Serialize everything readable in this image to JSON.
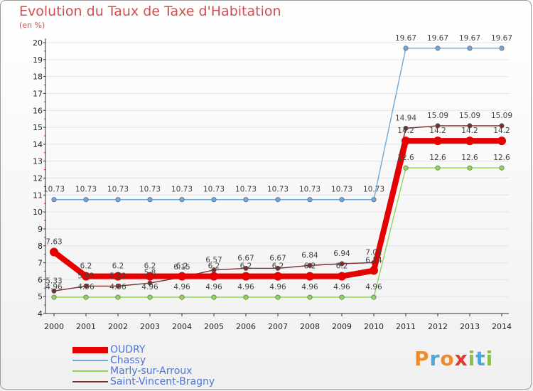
{
  "header": {
    "title": "Evolution du Taux de Taxe d'Habitation",
    "unit": "(en %)"
  },
  "brand": {
    "letters": [
      "P",
      "r",
      "o",
      "x",
      "i",
      "t",
      "i"
    ],
    "colors": [
      "#f08a2c",
      "#4da5d8",
      "#f08a2c",
      "#e23c2d",
      "#86c24a",
      "#4da5d8",
      "#86c24a"
    ]
  },
  "chart_data": {
    "type": "line",
    "title": "Evolution du Taux de Taxe d'Habitation",
    "ylabel": "(en %)",
    "xlabel": "",
    "x": [
      "2000",
      "2001",
      "2002",
      "2003",
      "2004",
      "2005",
      "2006",
      "2007",
      "2008",
      "2009",
      "2010",
      "2011",
      "2012",
      "2013",
      "2014"
    ],
    "ylim": [
      4,
      20
    ],
    "yticks": [
      "4",
      "5",
      "6",
      "7",
      "8",
      "9",
      "10",
      "11",
      "12",
      "13",
      "14",
      "15",
      "16",
      "17",
      "18",
      "19",
      "20"
    ],
    "legend_position": "bottom-left",
    "series": [
      {
        "name": "OUDRY",
        "color": "#e60000",
        "values": [
          7.63,
          6.2,
          6.2,
          6.2,
          6.2,
          6.2,
          6.2,
          6.2,
          6.2,
          6.2,
          6.54,
          14.2,
          14.2,
          14.2,
          14.2
        ],
        "labels": [
          "7.63",
          "6.2",
          "6.2",
          "6.2",
          "6.2",
          "6.2",
          "6.2",
          "6.2",
          "6.2",
          "6.2",
          "6.54",
          "14.2",
          "14.2",
          "14.2",
          "14.2"
        ]
      },
      {
        "name": "Chassy",
        "color": "#6fa8dc",
        "values": [
          10.73,
          10.73,
          10.73,
          10.73,
          10.73,
          10.73,
          10.73,
          10.73,
          10.73,
          10.73,
          10.73,
          19.67,
          19.67,
          19.67,
          19.67
        ],
        "labels": [
          "10.73",
          "10.73",
          "10.73",
          "10.73",
          "10.73",
          "10.73",
          "10.73",
          "10.73",
          "10.73",
          "10.73",
          "10.73",
          "19.67",
          "19.67",
          "19.67",
          "19.67"
        ]
      },
      {
        "name": "Marly-sur-Arroux",
        "color": "#93d35a",
        "values": [
          4.96,
          4.96,
          4.96,
          4.96,
          4.96,
          4.96,
          4.96,
          4.96,
          4.96,
          4.96,
          4.96,
          12.6,
          12.6,
          12.6,
          12.6
        ],
        "labels": [
          "4.96",
          "4.96",
          "4.96",
          "4.96",
          "4.96",
          "4.96",
          "4.96",
          "4.96",
          "4.96",
          "4.96",
          "4.96",
          "12.6",
          "12.6",
          "12.6",
          "12.6"
        ]
      },
      {
        "name": "Saint-Vincent-Bragny",
        "color": "#7a2e2e",
        "values": [
          5.33,
          5.62,
          5.62,
          5.8,
          6.15,
          6.57,
          6.67,
          6.67,
          6.84,
          6.94,
          7.01,
          14.94,
          15.09,
          15.09,
          15.09
        ],
        "labels": [
          "5.33",
          "5.62",
          "5.62",
          "5.8",
          "6.15",
          "6.57",
          "6.67",
          "6.67",
          "6.84",
          "6.94",
          "7.01",
          "14.94",
          "15.09",
          "15.09",
          "15.09"
        ]
      }
    ]
  }
}
